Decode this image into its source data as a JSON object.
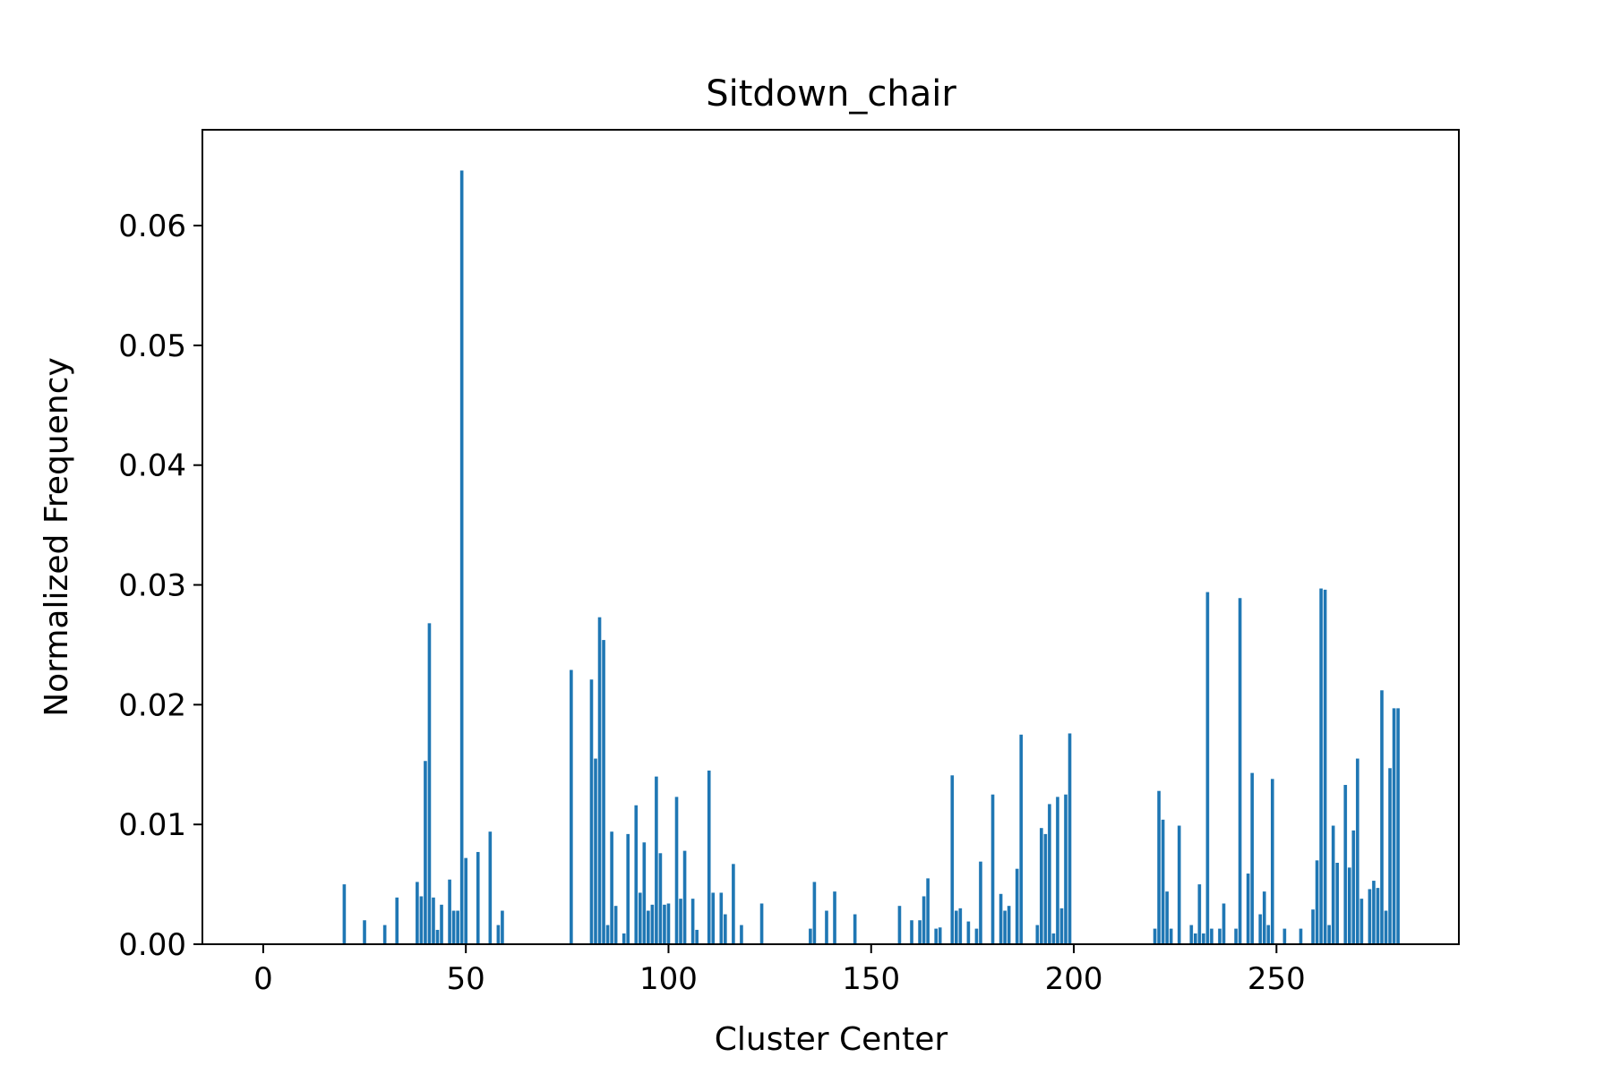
{
  "chart_data": {
    "type": "bar",
    "title": "Sitdown_chair",
    "xlabel": "Cluster Center",
    "ylabel": "Normalized Frequency",
    "xlim": [
      -15,
      295
    ],
    "ylim": [
      0,
      0.068
    ],
    "xticks": [
      0,
      50,
      100,
      150,
      200,
      250
    ],
    "yticks": [
      0.0,
      0.01,
      0.02,
      0.03,
      0.04,
      0.05,
      0.06
    ],
    "ytick_labels": [
      "0.00",
      "0.01",
      "0.02",
      "0.03",
      "0.04",
      "0.05",
      "0.06"
    ],
    "bar_color": "#1f77b4",
    "grid": false,
    "x": [
      20,
      25,
      30,
      33,
      38,
      39,
      40,
      41,
      42,
      43,
      44,
      46,
      47,
      48,
      49,
      50,
      53,
      56,
      58,
      59,
      76,
      81,
      82,
      83,
      84,
      85,
      86,
      87,
      89,
      90,
      92,
      93,
      94,
      95,
      96,
      97,
      98,
      99,
      100,
      102,
      103,
      104,
      106,
      107,
      110,
      111,
      113,
      114,
      116,
      118,
      123,
      135,
      136,
      139,
      141,
      146,
      157,
      160,
      162,
      163,
      164,
      166,
      167,
      170,
      171,
      172,
      174,
      176,
      177,
      180,
      182,
      183,
      184,
      186,
      187,
      191,
      192,
      193,
      194,
      195,
      196,
      197,
      198,
      199,
      220,
      221,
      222,
      223,
      224,
      226,
      229,
      230,
      231,
      232,
      233,
      234,
      236,
      237,
      240,
      241,
      243,
      244,
      246,
      247,
      248,
      249,
      252,
      256,
      259,
      260,
      261,
      262,
      263,
      264,
      265,
      267,
      268,
      269,
      270,
      271,
      273,
      274,
      275,
      276,
      277,
      278,
      279,
      280
    ],
    "values": [
      0.005,
      0.002,
      0.0016,
      0.0039,
      0.0052,
      0.004,
      0.0153,
      0.0268,
      0.0039,
      0.0012,
      0.0033,
      0.0054,
      0.0028,
      0.0028,
      0.0646,
      0.0072,
      0.0077,
      0.0094,
      0.0016,
      0.0028,
      0.0229,
      0.0221,
      0.0155,
      0.0273,
      0.0254,
      0.0016,
      0.0094,
      0.0032,
      0.0009,
      0.0092,
      0.0116,
      0.0043,
      0.0085,
      0.0028,
      0.0033,
      0.014,
      0.0076,
      0.0033,
      0.0034,
      0.0123,
      0.0038,
      0.0078,
      0.0038,
      0.0012,
      0.0145,
      0.0043,
      0.0043,
      0.0025,
      0.0067,
      0.0016,
      0.0034,
      0.0013,
      0.0052,
      0.0028,
      0.0044,
      0.0025,
      0.0032,
      0.002,
      0.002,
      0.004,
      0.0055,
      0.0013,
      0.0014,
      0.0141,
      0.0028,
      0.003,
      0.0019,
      0.0013,
      0.0069,
      0.0125,
      0.0042,
      0.0028,
      0.0032,
      0.0063,
      0.0175,
      0.0016,
      0.0097,
      0.0092,
      0.0117,
      0.0009,
      0.0123,
      0.003,
      0.0125,
      0.0176,
      0.0013,
      0.0128,
      0.0104,
      0.0044,
      0.0013,
      0.0099,
      0.0016,
      0.0009,
      0.005,
      0.0009,
      0.0294,
      0.0013,
      0.0013,
      0.0034,
      0.0013,
      0.0289,
      0.0059,
      0.0143,
      0.0025,
      0.0044,
      0.0016,
      0.0138,
      0.0013,
      0.0013,
      0.0029,
      0.007,
      0.0297,
      0.0296,
      0.0016,
      0.0099,
      0.0068,
      0.0133,
      0.0064,
      0.0095,
      0.0155,
      0.0038,
      0.0046,
      0.0053,
      0.0047,
      0.0212,
      0.0028,
      0.0147,
      0.0197,
      0.0197
    ]
  }
}
